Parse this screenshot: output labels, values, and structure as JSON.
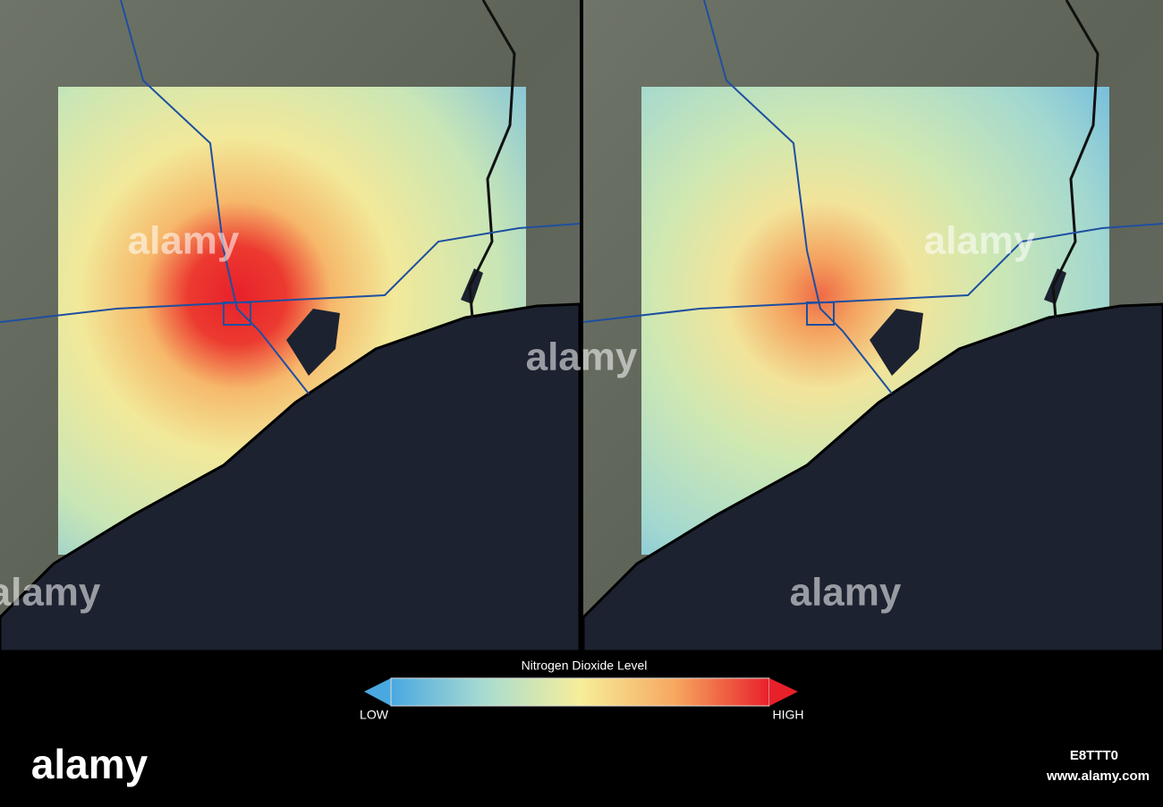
{
  "legend": {
    "title": "Nitrogen Dioxide Level",
    "low": "LOW",
    "high": "HIGH"
  },
  "watermark": {
    "logo": "alamy",
    "id": "E8TTT0",
    "url": "www.alamy.com"
  }
}
